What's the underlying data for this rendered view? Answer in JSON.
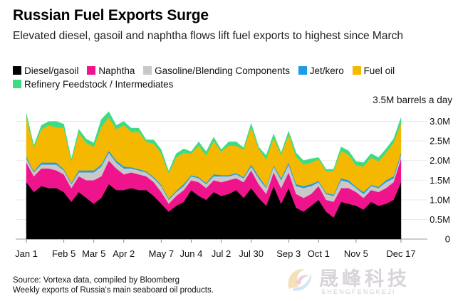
{
  "title": "Russian Fuel Exports Surge",
  "subtitle": "Elevated diesel, gasoil and naphtha flows lift fuel exports to highest since March",
  "unit_label": "3.5M barrels a day",
  "source_line1": "Source: Vortexa data, compiled by Bloomberg",
  "source_line2": "Weekly exports of Russia's main seaboard oil products.",
  "watermark": {
    "text": "晟峰科技",
    "sub": "SHENGFENGKEJI"
  },
  "colors": {
    "diesel": "#000000",
    "naphtha": "#f0148c",
    "gasoline": "#c8c8c8",
    "jet": "#1e9be6",
    "fuel_oil": "#f5b800",
    "feedstock": "#3ddc84",
    "grid": "#e6e6e6"
  },
  "chart_data": {
    "type": "area",
    "stacked": true,
    "title": "Russian Fuel Exports Surge",
    "ylabel": "3.5M barrels a day",
    "ylim": [
      0,
      3.5
    ],
    "yticks": [
      0,
      0.5,
      1.0,
      1.5,
      2.0,
      2.5,
      3.0
    ],
    "ytick_labels": [
      "0",
      "0.5M",
      "1.0M",
      "1.5M",
      "2.0M",
      "2.5M",
      "3.0M"
    ],
    "xtick_labels": [
      "Jan 1",
      "Feb 5",
      "Mar 5",
      "Apr 2",
      "May 7",
      "Jun 4",
      "Jul 2",
      "Jul 30",
      "Sep 3",
      "Oct 1",
      "Nov 5",
      "Dec 17"
    ],
    "xtick_index": [
      0,
      5,
      9,
      13,
      18,
      22,
      26,
      30,
      35,
      39,
      44,
      50
    ],
    "grid": true,
    "legend_position": "top-left",
    "weeks": 51,
    "series": [
      {
        "name": "Diesel/gasoil",
        "color_key": "diesel",
        "values": [
          1.45,
          1.2,
          1.35,
          1.3,
          1.3,
          1.2,
          0.95,
          1.2,
          1.05,
          0.9,
          1.05,
          1.4,
          1.25,
          1.25,
          1.3,
          1.25,
          1.25,
          1.1,
          0.9,
          0.7,
          0.85,
          0.95,
          1.25,
          1.1,
          1.0,
          1.2,
          1.1,
          1.15,
          1.25,
          1.05,
          1.3,
          1.05,
          0.85,
          1.35,
          0.9,
          1.3,
          0.8,
          0.7,
          0.85,
          1.0,
          0.7,
          0.55,
          0.95,
          0.9,
          0.85,
          0.75,
          0.95,
          0.85,
          0.9,
          1.0,
          1.45
        ]
      },
      {
        "name": "Naphtha",
        "color_key": "naphtha",
        "values": [
          0.5,
          0.4,
          0.45,
          0.5,
          0.45,
          0.45,
          0.35,
          0.4,
          0.45,
          0.6,
          0.55,
          0.6,
          0.55,
          0.4,
          0.4,
          0.4,
          0.35,
          0.35,
          0.3,
          0.2,
          0.25,
          0.3,
          0.25,
          0.35,
          0.3,
          0.3,
          0.35,
          0.35,
          0.3,
          0.4,
          0.45,
          0.35,
          0.3,
          0.35,
          0.4,
          0.4,
          0.35,
          0.35,
          0.3,
          0.35,
          0.3,
          0.4,
          0.35,
          0.4,
          0.35,
          0.3,
          0.3,
          0.35,
          0.4,
          0.45,
          0.6
        ]
      },
      {
        "name": "Gasoline/Blending Components",
        "color_key": "gasoline",
        "values": [
          0.1,
          0.1,
          0.1,
          0.1,
          0.15,
          0.1,
          0.1,
          0.1,
          0.2,
          0.2,
          0.25,
          0.2,
          0.15,
          0.15,
          0.1,
          0.1,
          0.1,
          0.1,
          0.15,
          0.1,
          0.1,
          0.1,
          0.1,
          0.1,
          0.1,
          0.1,
          0.15,
          0.1,
          0.1,
          0.1,
          0.1,
          0.15,
          0.15,
          0.15,
          0.2,
          0.2,
          0.2,
          0.25,
          0.2,
          0.1,
          0.15,
          0.15,
          0.2,
          0.15,
          0.1,
          0.1,
          0.1,
          0.1,
          0.15,
          0.1,
          0.1
        ]
      },
      {
        "name": "Jet/kero",
        "color_key": "jet",
        "values": [
          0.05,
          0.03,
          0.05,
          0.05,
          0.05,
          0.03,
          0.03,
          0.05,
          0.05,
          0.05,
          0.05,
          0.05,
          0.05,
          0.05,
          0.03,
          0.03,
          0.03,
          0.03,
          0.03,
          0.03,
          0.03,
          0.05,
          0.03,
          0.03,
          0.03,
          0.05,
          0.03,
          0.03,
          0.03,
          0.03,
          0.05,
          0.05,
          0.03,
          0.03,
          0.05,
          0.05,
          0.05,
          0.05,
          0.05,
          0.03,
          0.03,
          0.03,
          0.05,
          0.05,
          0.03,
          0.05,
          0.03,
          0.03,
          0.05,
          0.05,
          0.05
        ]
      },
      {
        "name": "Fuel oil",
        "color_key": "fuel_oil",
        "values": [
          1.0,
          0.6,
          0.85,
          0.95,
          0.9,
          1.05,
          0.55,
          0.95,
          0.7,
          0.6,
          0.95,
          0.85,
          0.8,
          1.05,
          0.9,
          0.95,
          0.75,
          0.85,
          0.8,
          0.65,
          0.85,
          0.8,
          0.55,
          0.8,
          0.7,
          0.85,
          0.6,
          0.75,
          0.7,
          0.7,
          0.95,
          0.7,
          0.7,
          0.7,
          0.6,
          0.7,
          0.7,
          0.55,
          0.55,
          0.55,
          0.55,
          0.6,
          0.7,
          0.65,
          0.55,
          0.65,
          0.7,
          0.65,
          0.7,
          0.85,
          0.75
        ]
      },
      {
        "name": "Refinery Feedstock / Intermediates",
        "color_key": "feedstock",
        "values": [
          0.1,
          0.05,
          0.1,
          0.1,
          0.15,
          0.1,
          0.05,
          0.1,
          0.1,
          0.1,
          0.2,
          0.15,
          0.1,
          0.1,
          0.1,
          0.1,
          0.05,
          0.1,
          0.1,
          0.05,
          0.1,
          0.1,
          0.05,
          0.1,
          0.1,
          0.1,
          0.05,
          0.1,
          0.1,
          0.05,
          0.1,
          0.05,
          0.1,
          0.1,
          0.05,
          0.1,
          0.1,
          0.1,
          0.1,
          0.05,
          0.05,
          0.05,
          0.1,
          0.1,
          0.1,
          0.1,
          0.1,
          0.1,
          0.1,
          0.1,
          0.15
        ]
      }
    ]
  }
}
